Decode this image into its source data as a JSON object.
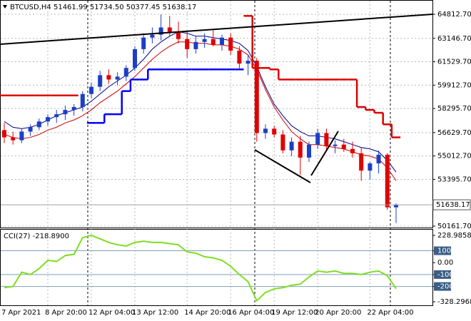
{
  "chart_data": [
    {
      "type": "candlestick",
      "title": "BTCUSD,H4  51461.99 51734.50 50377.45 51638.17",
      "categories": [
        "7 Apr 2021",
        null,
        null,
        null,
        null,
        "8 Apr 20:00",
        null,
        null,
        null,
        null,
        "12 Apr 04:00",
        null,
        null,
        null,
        null,
        "13 Apr 12:00",
        null,
        null,
        null,
        null,
        null,
        "14 Apr 20:00",
        null,
        null,
        null,
        null,
        "16 Apr 04:00",
        null,
        null,
        null,
        null,
        "19 Apr 12:00",
        null,
        null,
        null,
        null,
        "20 Apr 20:00",
        null,
        null,
        null,
        null,
        null,
        "22 Apr 04:00",
        null,
        null,
        null
      ],
      "open": [
        56800,
        56300,
        56100,
        56700,
        57000,
        57400,
        57700,
        57900,
        58200,
        58400,
        59300,
        59800,
        60600,
        60300,
        60500,
        61100,
        62400,
        63200,
        63400,
        63900,
        63600,
        63100,
        62400,
        62900,
        63100,
        62700,
        63200,
        62300,
        61400,
        61600,
        56600,
        56900,
        56500,
        55400,
        56000,
        54900,
        55800,
        56600,
        55700,
        55800,
        55500,
        55200,
        54000,
        54500,
        55100,
        51461.99
      ],
      "high": [
        57300,
        56700,
        56900,
        57200,
        57600,
        57900,
        58200,
        58500,
        58600,
        59500,
        60100,
        60900,
        61000,
        60800,
        61300,
        62600,
        63500,
        63900,
        64800,
        64700,
        64300,
        63600,
        63300,
        63500,
        63700,
        63400,
        63500,
        62600,
        62000,
        61800,
        57200,
        57100,
        56800,
        56300,
        56400,
        56000,
        56900,
        56900,
        56100,
        56200,
        56000,
        55600,
        54600,
        55400,
        55200,
        51734.5
      ],
      "low": [
        55900,
        55800,
        55900,
        56400,
        56800,
        57100,
        57300,
        57500,
        57800,
        58100,
        59000,
        59500,
        60000,
        59900,
        60200,
        60900,
        62100,
        62800,
        63000,
        63300,
        62800,
        61800,
        62100,
        62500,
        62600,
        62300,
        62000,
        61000,
        60600,
        56000,
        56200,
        56300,
        55200,
        55000,
        53700,
        54600,
        55500,
        55400,
        55200,
        55300,
        54900,
        53300,
        53400,
        53800,
        51300,
        50377.45
      ],
      "close": [
        56300,
        56100,
        56700,
        57000,
        57400,
        57700,
        57900,
        58200,
        58400,
        59300,
        59800,
        60600,
        60300,
        60500,
        61100,
        62400,
        63200,
        63400,
        63900,
        63600,
        63100,
        62400,
        62900,
        63100,
        62700,
        63200,
        62300,
        61400,
        61600,
        56600,
        56900,
        56500,
        55400,
        56000,
        54900,
        55800,
        56600,
        55700,
        55800,
        55500,
        55200,
        54000,
        54500,
        55100,
        51462,
        51638.17
      ],
      "up_color": "#1c3fc4",
      "down_color": "#e00000",
      "series": [
        {
          "color": "#00008b",
          "width": 1,
          "step": false,
          "values": [
            57400,
            57000,
            56900,
            57000,
            57200,
            57500,
            57800,
            58000,
            58200,
            58400,
            58800,
            59300,
            59800,
            60200,
            60600,
            61100,
            61700,
            62400,
            62900,
            63300,
            63600,
            63500,
            63300,
            63300,
            63200,
            63100,
            63000,
            62800,
            62300,
            61200,
            59800,
            58600,
            57800,
            57100,
            56700,
            56400,
            56400,
            56300,
            56200,
            56000,
            55800,
            55600,
            55500,
            55300,
            54700,
            53900
          ]
        },
        {
          "color": "#cc0000",
          "width": 1,
          "step": false,
          "values": [
            56500,
            56300,
            56200,
            56300,
            56500,
            56800,
            57000,
            57300,
            57500,
            57800,
            58200,
            58700,
            59100,
            59500,
            60000,
            60500,
            61100,
            61700,
            62200,
            62600,
            62900,
            62900,
            62800,
            62800,
            62700,
            62700,
            62600,
            62400,
            62000,
            61000,
            59600,
            58400,
            57500,
            56700,
            56200,
            55800,
            55800,
            55700,
            55600,
            55500,
            55300,
            55100,
            55000,
            54800,
            54200,
            53300
          ]
        },
        {
          "color": "#0000ff",
          "width": 2.5,
          "step": true,
          "values": [
            null,
            null,
            null,
            null,
            null,
            null,
            null,
            null,
            null,
            null,
            57300,
            57300,
            57900,
            57900,
            59500,
            60300,
            60300,
            61000,
            61000,
            61000,
            61000,
            61000,
            61000,
            61000,
            61000,
            61000,
            61000,
            61000,
            null,
            null,
            null,
            null,
            null,
            null,
            null,
            null,
            null,
            null,
            null,
            null,
            null,
            null,
            null,
            null,
            null,
            null
          ]
        },
        {
          "color": "#dd0000",
          "width": 2.5,
          "step": true,
          "values": [
            59200,
            59200,
            59200,
            59200,
            59200,
            59200,
            59200,
            59200,
            59200,
            null,
            null,
            null,
            null,
            null,
            null,
            null,
            null,
            null,
            null,
            null,
            null,
            null,
            null,
            null,
            null,
            null,
            null,
            null,
            64700,
            61100,
            61100,
            61000,
            60300,
            60300,
            60300,
            60300,
            60300,
            60300,
            60300,
            60300,
            60300,
            58400,
            58200,
            58000,
            57200,
            56300
          ]
        }
      ],
      "ylim": [
        50063,
        65701
      ],
      "yticks": [
        {
          "value": 64812.7,
          "label": "64812.70"
        },
        {
          "value": 63146.7,
          "label": "63146.70"
        },
        {
          "value": 61529.7,
          "label": "61529.70"
        },
        {
          "value": 59912.7,
          "label": "59912.70"
        },
        {
          "value": 58295.7,
          "label": "58295.70"
        },
        {
          "value": 56629.7,
          "label": "56629.70"
        },
        {
          "value": 55012.7,
          "label": "55012.70"
        },
        {
          "value": 53395.7,
          "label": "53395.70"
        },
        {
          "value": 50161.7,
          "label": "50161.70"
        }
      ],
      "grid": true
    },
    {
      "type": "line",
      "title": "CCI(27) -218.8900",
      "color": "#7fdd22",
      "values": [
        -210,
        -200,
        -80,
        -100,
        -50,
        20,
        10,
        60,
        70,
        210,
        230,
        200,
        170,
        150,
        140,
        170,
        180,
        170,
        170,
        160,
        150,
        90,
        80,
        50,
        40,
        20,
        -30,
        -100,
        -160,
        -320,
        -250,
        -220,
        -210,
        -190,
        -180,
        -120,
        -70,
        -80,
        -70,
        -90,
        -90,
        -100,
        -80,
        -70,
        -110,
        -218.89
      ],
      "ylim": [
        -328.2968,
        228.9858
      ],
      "yticks": [
        228.9858,
        100,
        {
          "value": 0,
          "label": "0.00"
        },
        -100,
        -200,
        -328.2968
      ],
      "levels": [
        100,
        -100,
        -200
      ],
      "level_color": "#7f9fc0"
    }
  ]
}
